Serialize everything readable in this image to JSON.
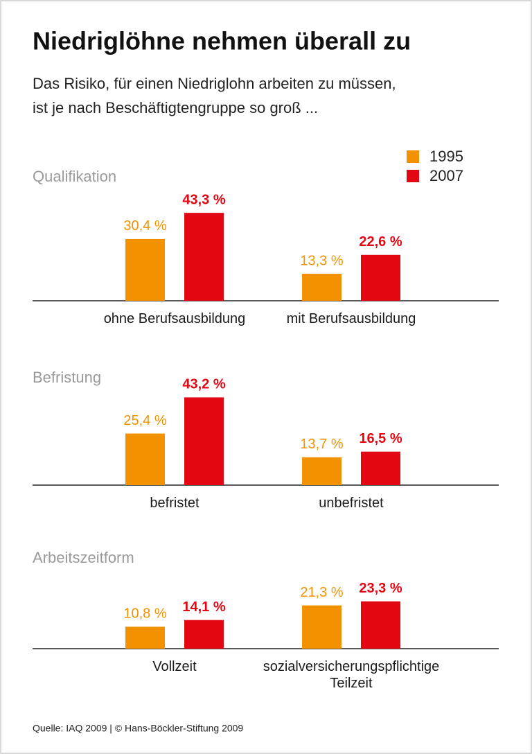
{
  "title": "Niedriglöhne nehmen überall zu",
  "subtitle": [
    "Das Risiko, für einen Niedriglohn arbeiten zu müssen,",
    "ist je nach Beschäftigtengruppe so groß ..."
  ],
  "source": "Quelle: IAQ 2009 | © Hans-Böckler-Stiftung 2009",
  "chart_data": [
    {
      "type": "bar",
      "title": "Qualifikation",
      "legend": "top-right",
      "categories": [
        "ohne Berufsausbildung",
        "mit Berufsausbildung"
      ],
      "series": [
        {
          "name": "1995",
          "color": "#f39200",
          "values": [
            30.4,
            13.3
          ],
          "value_labels": [
            "30,4 %",
            "13,3 %"
          ]
        },
        {
          "name": "2007",
          "color": "#e30613",
          "values": [
            43.3,
            22.6
          ],
          "value_labels": [
            "43,3 %",
            "22,6 %"
          ]
        }
      ]
    },
    {
      "type": "bar",
      "title": "Befristung",
      "categories": [
        "befristet",
        "unbefristet"
      ],
      "series": [
        {
          "color": "#f39200",
          "values": [
            25.4,
            13.7
          ],
          "value_labels": [
            "25,4 %",
            "13,7 %"
          ]
        },
        {
          "color": "#e30613",
          "values": [
            43.2,
            16.5
          ],
          "value_labels": [
            "43,2 %",
            "16,5 %"
          ]
        }
      ]
    },
    {
      "type": "bar",
      "title": "Arbeitszeitform",
      "categories": [
        "Vollzeit",
        "sozialversicherungspflichtige Teilzeit"
      ],
      "series": [
        {
          "color": "#f39200",
          "values": [
            10.8,
            21.3
          ],
          "value_labels": [
            "10,8 %",
            "21,3 %"
          ]
        },
        {
          "color": "#e30613",
          "values": [
            14.1,
            23.3
          ],
          "value_labels": [
            "14,1 %",
            "23,3 %"
          ]
        }
      ]
    }
  ]
}
